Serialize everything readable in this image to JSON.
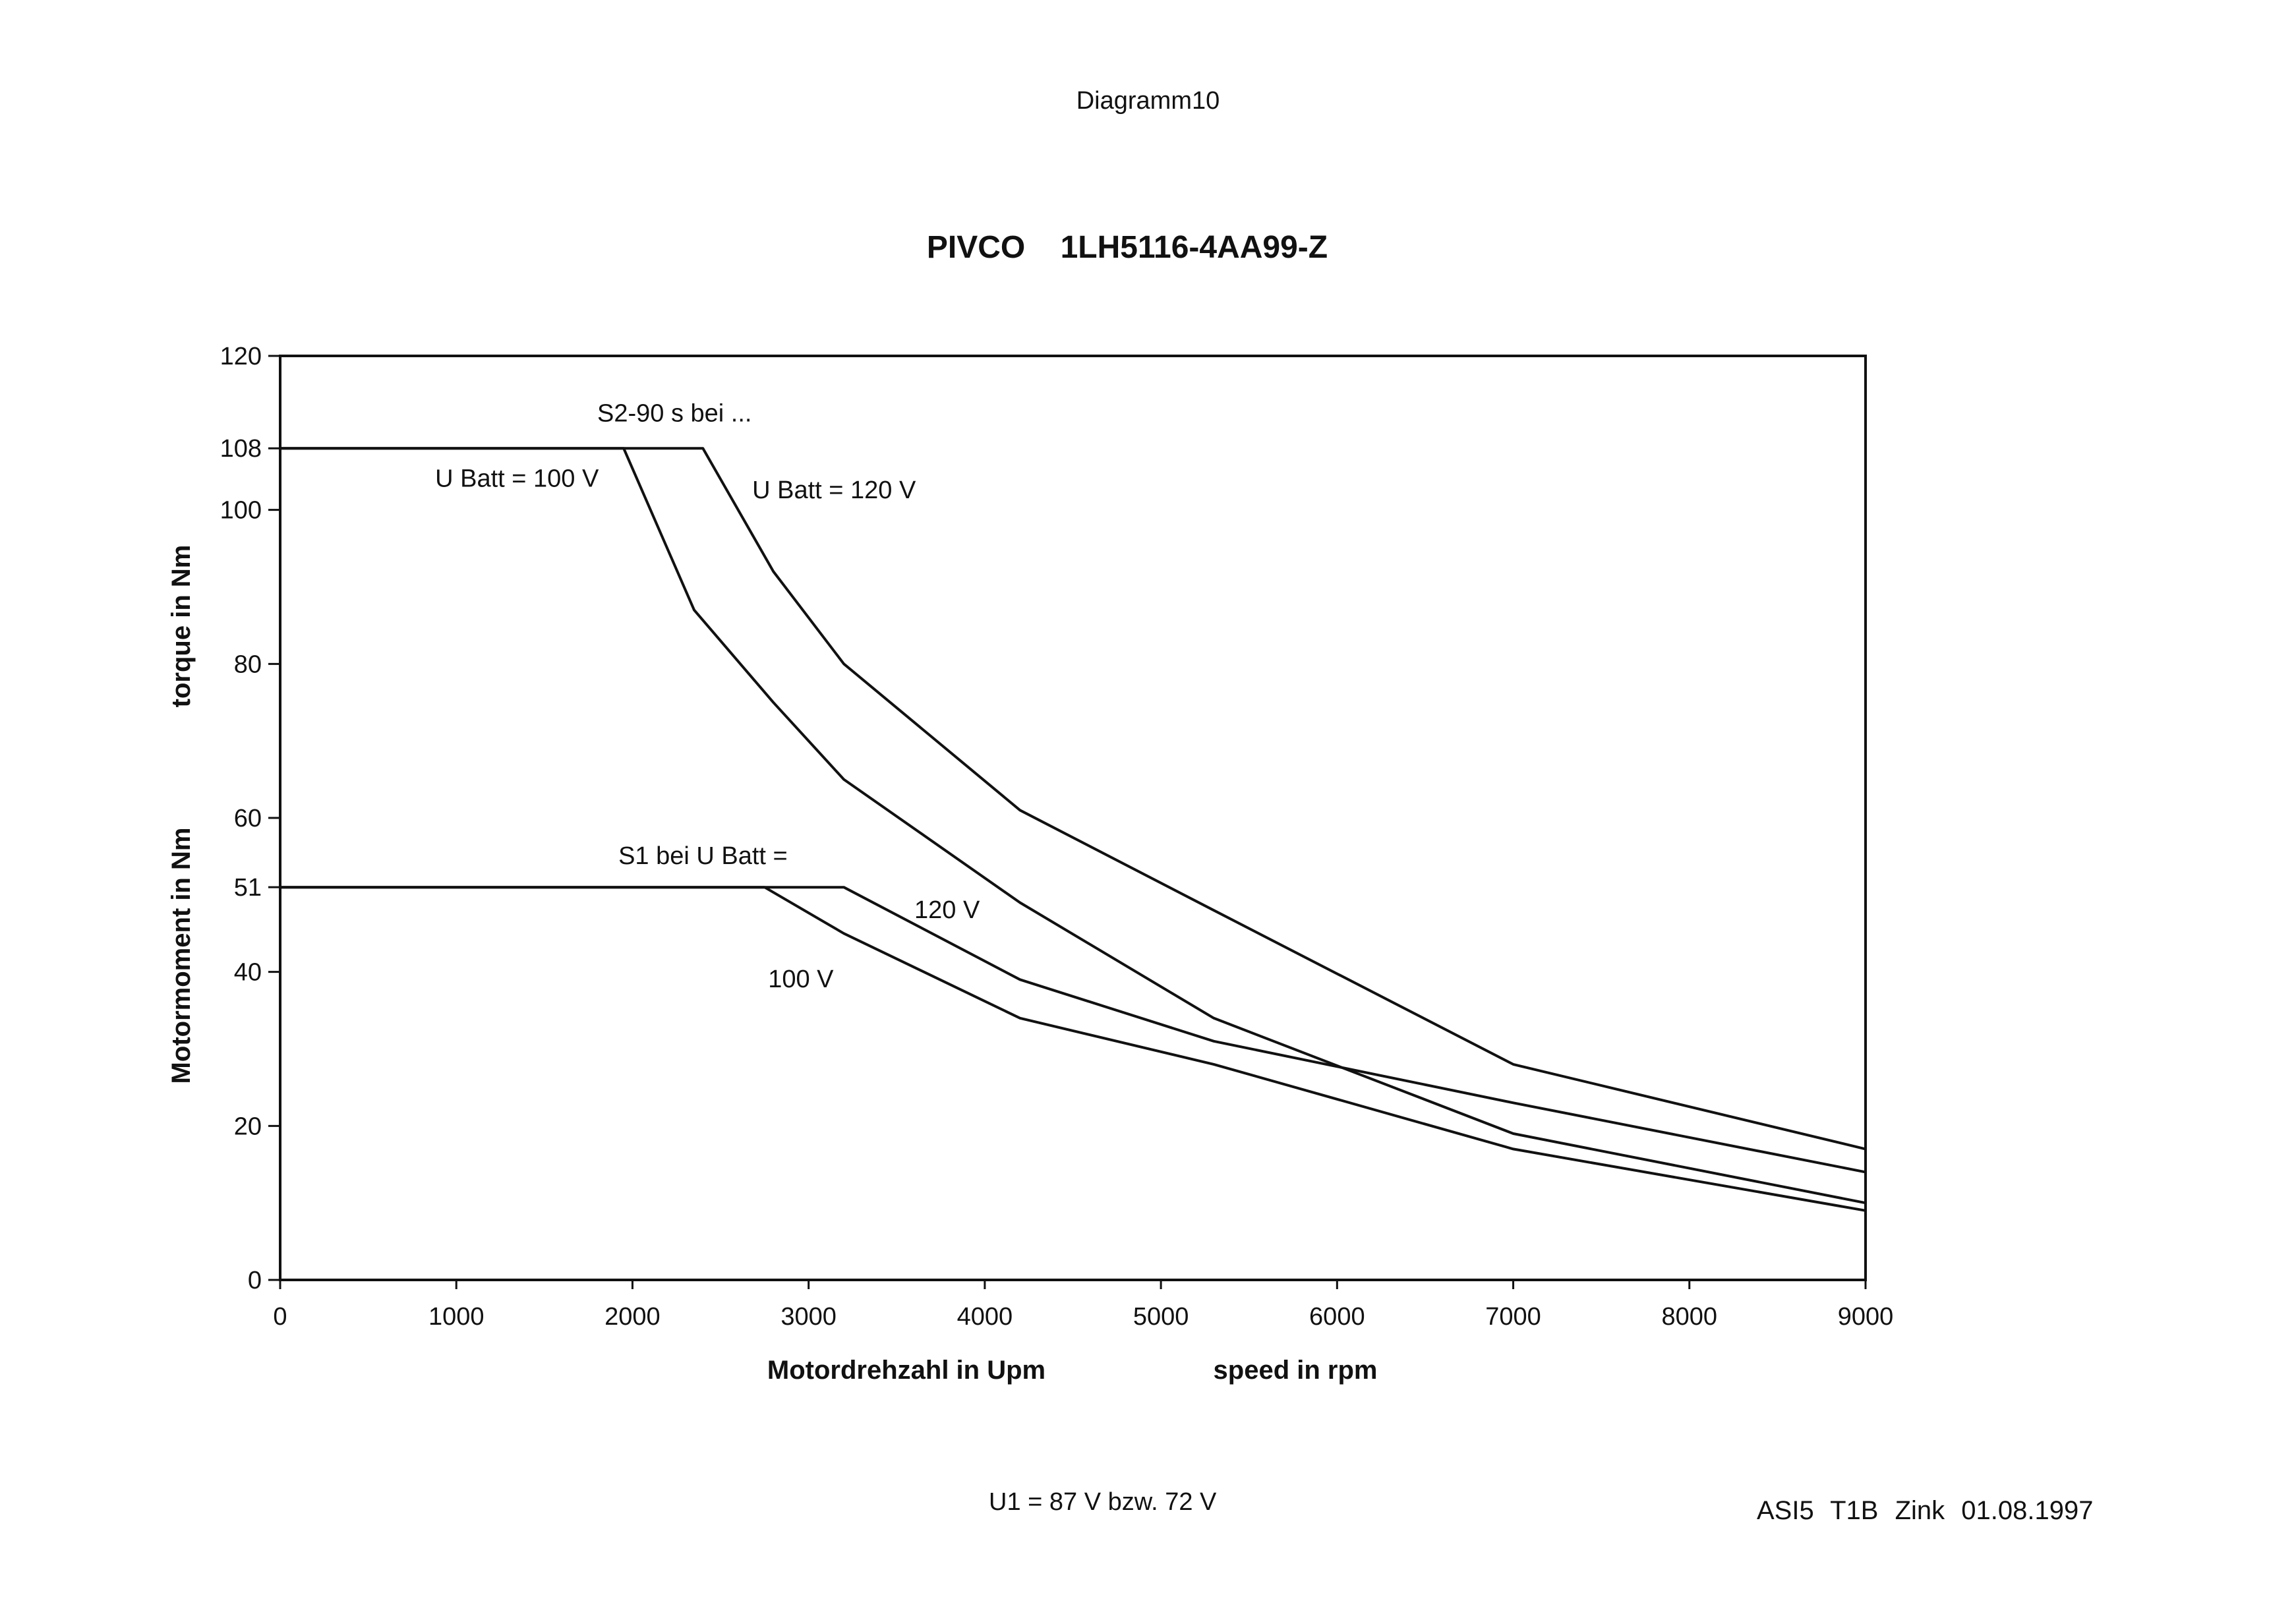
{
  "document": {
    "page_title": "Diagramm10",
    "footer_left": "U1 = 87 V bzw. 72 V",
    "footer_right": "ASI5  T1B  Zink   01.08.1997"
  },
  "chart_data": {
    "type": "line",
    "title": "PIVCO    1LH5116-4AA99-Z",
    "xlabel": "Motordrehzahl in Upm",
    "xlabel_en": "speed in rpm",
    "ylabel": "Motormoment in Nm",
    "ylabel_en": "torque in Nm",
    "xlim": [
      0,
      9000
    ],
    "ylim": [
      0,
      120
    ],
    "x_ticks": [
      0,
      1000,
      2000,
      3000,
      4000,
      5000,
      6000,
      7000,
      8000,
      9000
    ],
    "y_ticks": [
      0,
      20,
      40,
      51,
      60,
      80,
      100,
      108,
      120
    ],
    "grid": false,
    "line_color": "#111111",
    "series": [
      {
        "name": "S2-90 s bei U Batt = 100 V",
        "x": [
          0,
          1950,
          2350,
          2800,
          3200,
          4200,
          5300,
          7000,
          9000
        ],
        "y": [
          108,
          108,
          87,
          75,
          65,
          49,
          34,
          19,
          10
        ]
      },
      {
        "name": "S2-90 s bei U Batt = 120 V",
        "x": [
          0,
          2400,
          2800,
          3200,
          4200,
          5300,
          7000,
          9000
        ],
        "y": [
          108,
          108,
          92,
          80,
          61,
          48,
          28,
          17
        ]
      },
      {
        "name": "S1 bei U Batt = 100 V",
        "x": [
          0,
          2750,
          3200,
          4200,
          5300,
          7000,
          9000
        ],
        "y": [
          51,
          51,
          45,
          34,
          28,
          17,
          9
        ]
      },
      {
        "name": "S1 bei U Batt = 120 V",
        "x": [
          0,
          3200,
          4200,
          5300,
          7000,
          9000
        ],
        "y": [
          51,
          51,
          39,
          31,
          23,
          14
        ]
      }
    ],
    "annotations": [
      {
        "text": "S2-90 s bei ...",
        "x": 1800,
        "y": 111.5
      },
      {
        "text": "U Batt = 100 V",
        "x": 880,
        "y": 103
      },
      {
        "text": "U Batt = 120 V",
        "x": 2680,
        "y": 101.5
      },
      {
        "text": "S1 bei U Batt =",
        "x": 1920,
        "y": 54
      },
      {
        "text": "120 V",
        "x": 3600,
        "y": 47
      },
      {
        "text": "100 V",
        "x": 2770,
        "y": 38
      }
    ]
  }
}
